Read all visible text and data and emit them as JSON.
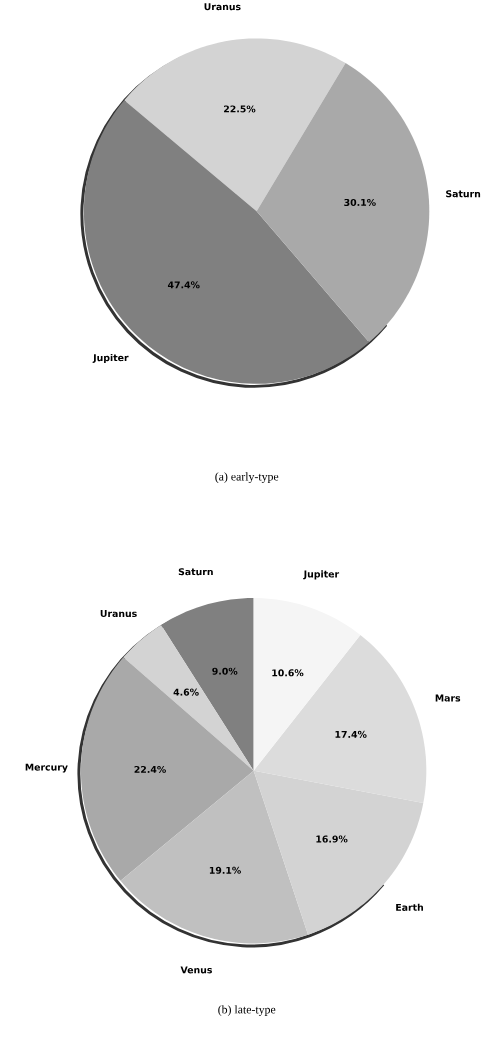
{
  "chart_data": [
    {
      "type": "pie",
      "title": "(a) early-type",
      "categories": [
        "Uranus",
        "Jupiter",
        "Saturn"
      ],
      "values": [
        22.5,
        47.4,
        30.1
      ],
      "colors": [
        "#d3d3d3",
        "#808080",
        "#a9a9a9"
      ],
      "value_labels": [
        "22.5%",
        "47.4%",
        "30.1%"
      ]
    },
    {
      "type": "pie",
      "title": "(b) late-type",
      "categories": [
        "Saturn",
        "Uranus",
        "Mercury",
        "Venus",
        "Earth",
        "Mars",
        "Jupiter"
      ],
      "values": [
        9.0,
        4.6,
        22.4,
        19.1,
        16.9,
        17.4,
        10.6
      ],
      "colors": [
        "#808080",
        "#d3d3d3",
        "#a9a9a9",
        "#c0c0c0",
        "#d3d3d3",
        "#dcdcdc",
        "#f5f5f5"
      ],
      "value_labels": [
        "9.0%",
        "4.6%",
        "22.4%",
        "19.1%",
        "16.9%",
        "17.4%",
        "10.6%"
      ]
    }
  ]
}
